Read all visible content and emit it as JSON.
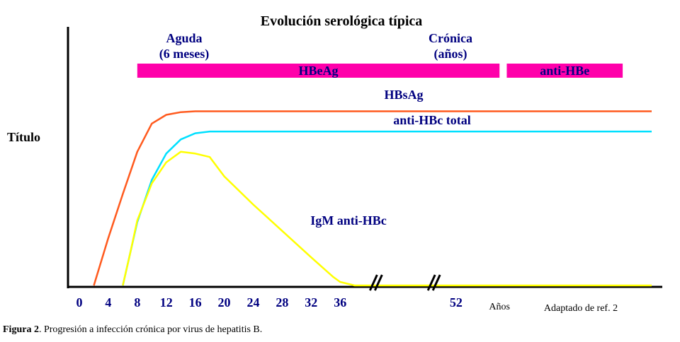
{
  "chart_data": {
    "type": "line",
    "title": "Evolución serológica típica",
    "ylabel": "Título",
    "phases": [
      {
        "label_line1": "Aguda",
        "label_line2": "(6 meses)"
      },
      {
        "label_line1": "Crónica",
        "label_line2": "(años)"
      }
    ],
    "bands": [
      {
        "label": "HBeAg",
        "x": [
          8,
          58
        ],
        "color": "#ff00aa"
      },
      {
        "label": "anti-HBe",
        "x": [
          59,
          75
        ],
        "color": "#ff00aa"
      }
    ],
    "x_ticks": [
      "0",
      "4",
      "8",
      "12",
      "16",
      "20",
      "24",
      "28",
      "32",
      "36",
      "52",
      "Años"
    ],
    "x_tick_values": [
      0,
      4,
      8,
      12,
      16,
      20,
      24,
      28,
      32,
      36,
      52,
      58
    ],
    "x_range": [
      0,
      79
    ],
    "y_range": [
      0,
      1
    ],
    "axis_breaks_at": [
      41,
      49
    ],
    "series": [
      {
        "name": "HBsAg",
        "color": "#ff5a1e",
        "x": [
          2,
          4,
          6,
          8,
          10,
          12,
          14,
          16,
          18,
          79
        ],
        "y": [
          0,
          0.27,
          0.52,
          0.76,
          0.92,
          0.97,
          0.985,
          0.99,
          0.99,
          0.99
        ]
      },
      {
        "name": "anti-HBc total",
        "color": "#00e0ff",
        "x": [
          6,
          8,
          10,
          12,
          14,
          16,
          18,
          20,
          79
        ],
        "y": [
          0,
          0.36,
          0.6,
          0.75,
          0.83,
          0.865,
          0.875,
          0.875,
          0.875
        ]
      },
      {
        "name": "IgM anti-HBc",
        "color": "#ffff00",
        "x": [
          6,
          7,
          8,
          10,
          12,
          14,
          16,
          18,
          20,
          24,
          28,
          32,
          35,
          36,
          38,
          79
        ],
        "y": [
          0,
          0.18,
          0.37,
          0.58,
          0.7,
          0.76,
          0.75,
          0.73,
          0.62,
          0.46,
          0.31,
          0.16,
          0.05,
          0.02,
          0,
          0
        ]
      }
    ],
    "annotations": [
      "Adaptado de ref. 2"
    ],
    "grid": false,
    "legend": "none"
  },
  "caption": {
    "label": "Figura 2",
    "text": ". Progresión a infección crónica por virus de hepatitis B."
  }
}
